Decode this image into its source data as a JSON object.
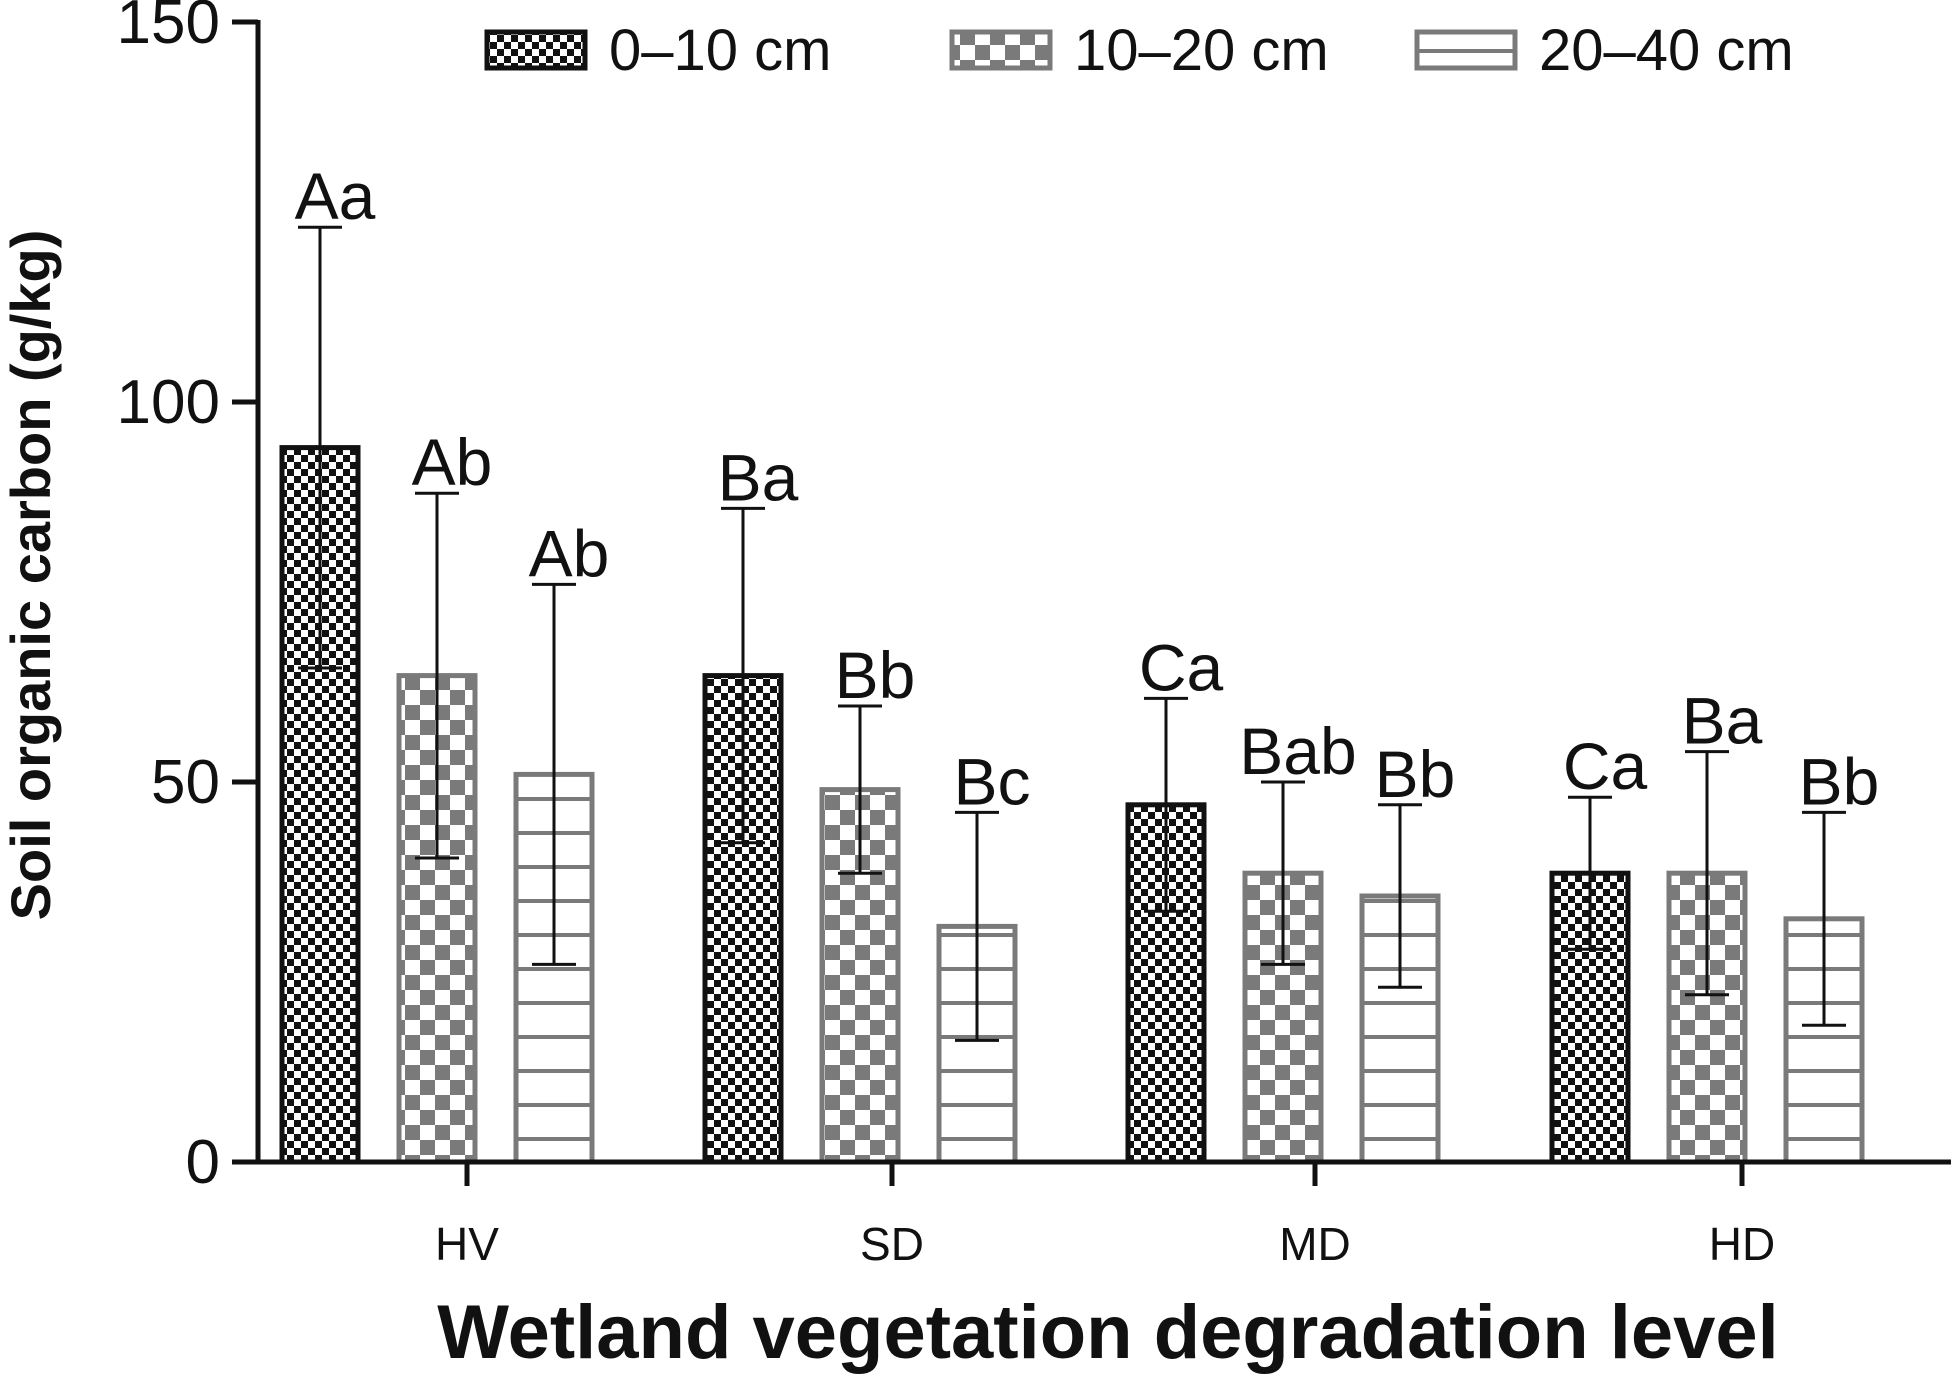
{
  "chart_data": {
    "type": "bar",
    "title": "",
    "xlabel": "Wetland vegetation degradation level",
    "ylabel": "Soil organic carbon (g/kg)",
    "ylim": [
      0,
      150
    ],
    "yticks": [
      "0",
      "50",
      "100",
      "150"
    ],
    "categories": [
      "HV",
      "SD",
      "MD",
      "HD"
    ],
    "legend_position": "top",
    "series": [
      {
        "name": "0–10 cm",
        "pattern": "dense-checker",
        "color": "#111111",
        "values": [
          94,
          64,
          47,
          38
        ],
        "errors": [
          29,
          22,
          14,
          10
        ],
        "labels": [
          "Aa",
          "Ba",
          "Ca",
          "Ca"
        ]
      },
      {
        "name": "10–20 cm",
        "pattern": "large-checker",
        "color": "#7a7a7a",
        "values": [
          64,
          49,
          38,
          38
        ],
        "errors": [
          24,
          11,
          12,
          16
        ],
        "labels": [
          "Ab",
          "Bb",
          "Bab",
          "Ba"
        ]
      },
      {
        "name": "20–40 cm",
        "pattern": "horizontal-lines",
        "color": "#7a7a7a",
        "values": [
          51,
          31,
          35,
          32
        ],
        "errors": [
          25,
          15,
          12,
          14
        ],
        "labels": [
          "Ab",
          "Bc",
          "Bb",
          "Bb"
        ]
      }
    ]
  }
}
